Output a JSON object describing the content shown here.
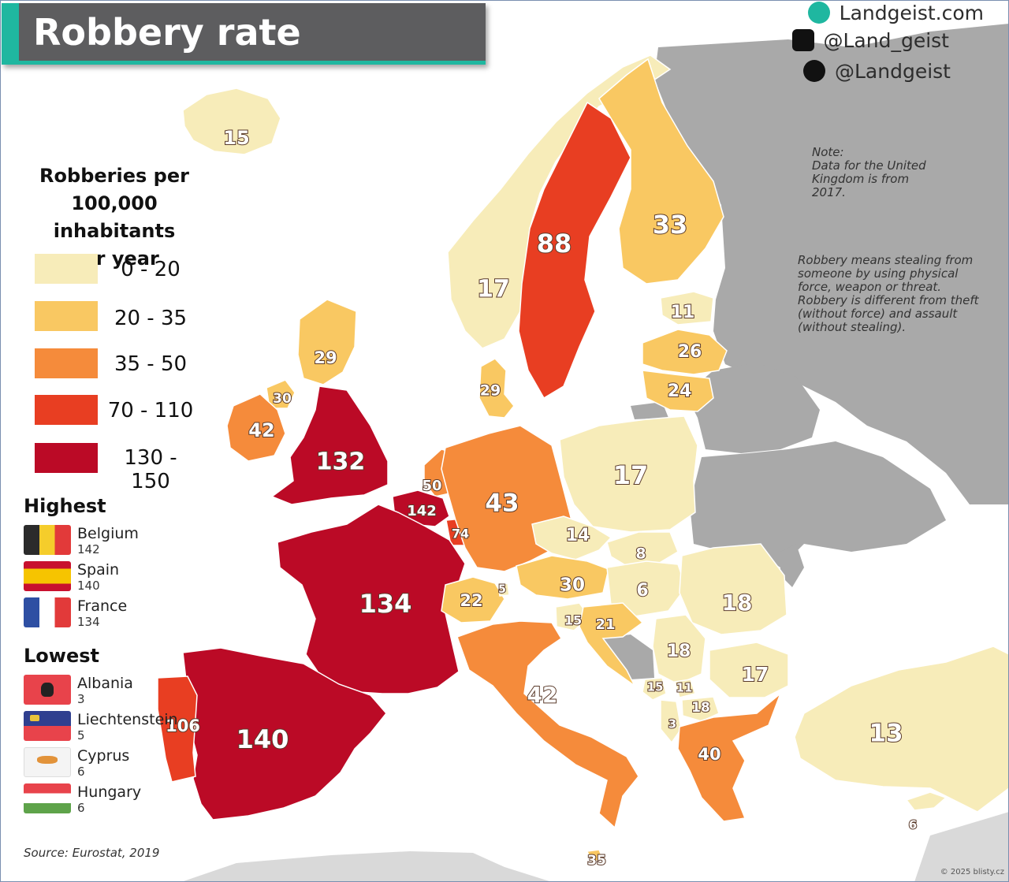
{
  "title": "Robbery rate",
  "brand": {
    "website": "Landgeist.com",
    "instagram": "@Land_geist",
    "twitter": "@Landgeist",
    "icons": [
      "globe-icon",
      "instagram-icon",
      "twitter-icon"
    ]
  },
  "legend": {
    "title_lines": [
      "Robberies per",
      "100,000 inhabitants",
      "per year"
    ],
    "bins": [
      {
        "label": "0  - 20",
        "color": "#f7ecb9"
      },
      {
        "label": "20 - 35",
        "color": "#f9c862"
      },
      {
        "label": "35 - 50",
        "color": "#f58b3b"
      },
      {
        "label": "70  - 110",
        "color": "#e83e22"
      },
      {
        "label": "130 - 150",
        "color": "#bb0a26"
      }
    ],
    "no_data_color": "#a9a9a9"
  },
  "highest": {
    "title": "Highest",
    "items": [
      {
        "country": "Belgium",
        "value": "142",
        "flag": "belgium-flag"
      },
      {
        "country": "Spain",
        "value": "140",
        "flag": "spain-flag"
      },
      {
        "country": "France",
        "value": "134",
        "flag": "france-flag"
      }
    ]
  },
  "lowest": {
    "title": "Lowest",
    "items": [
      {
        "country": "Albania",
        "value": "3",
        "flag": "albania-flag"
      },
      {
        "country": "Liechtenstein",
        "value": "5",
        "flag": "liechtenstein-flag"
      },
      {
        "country": "Cyprus",
        "value": "6",
        "flag": "cyprus-flag"
      },
      {
        "country": "Hungary",
        "value": "6",
        "flag": "hungary-flag"
      }
    ]
  },
  "notes": {
    "uk_lines": [
      "Note:",
      "Data for the United",
      "Kingdom is from 2017."
    ],
    "definition_lines": [
      "Robbery means stealing from",
      "someone by using physical",
      "force, weapon or threat.",
      "Robbery is different from theft",
      "(without force) and assault",
      "(without stealing)."
    ]
  },
  "source": "Source: Eurostat, 2019",
  "credit": "© 2025 blisty.cz",
  "countries": [
    {
      "name": "Iceland",
      "value": 15,
      "label": "15",
      "bin": 0
    },
    {
      "name": "Norway",
      "value": 17,
      "label": "17",
      "bin": 0
    },
    {
      "name": "Sweden",
      "value": 88,
      "label": "88",
      "bin": 3
    },
    {
      "name": "Finland",
      "value": 33,
      "label": "33",
      "bin": 1
    },
    {
      "name": "Estonia",
      "value": 11,
      "label": "11",
      "bin": 0
    },
    {
      "name": "Latvia",
      "value": 26,
      "label": "26",
      "bin": 1
    },
    {
      "name": "Lithuania",
      "value": 24,
      "label": "24",
      "bin": 1
    },
    {
      "name": "Denmark",
      "value": 29,
      "label": "29",
      "bin": 1
    },
    {
      "name": "Scotland",
      "value": 29,
      "label": "29",
      "bin": 1
    },
    {
      "name": "Northern Ireland",
      "value": 30,
      "label": "30",
      "bin": 1
    },
    {
      "name": "Ireland",
      "value": 42,
      "label": "42",
      "bin": 2
    },
    {
      "name": "England and Wales",
      "value": 132,
      "label": "132",
      "bin": 4
    },
    {
      "name": "Netherlands",
      "value": 50,
      "label": "50",
      "bin": 2
    },
    {
      "name": "Belgium",
      "value": 142,
      "label": "142",
      "bin": 4
    },
    {
      "name": "Luxembourg",
      "value": 74,
      "label": "74",
      "bin": 3
    },
    {
      "name": "Germany",
      "value": 43,
      "label": "43",
      "bin": 2
    },
    {
      "name": "Poland",
      "value": 17,
      "label": "17",
      "bin": 0
    },
    {
      "name": "Czechia",
      "value": 14,
      "label": "14",
      "bin": 0
    },
    {
      "name": "Slovakia",
      "value": 8,
      "label": "8",
      "bin": 0
    },
    {
      "name": "Austria",
      "value": 30,
      "label": "30",
      "bin": 1
    },
    {
      "name": "Hungary",
      "value": 6,
      "label": "6",
      "bin": 0
    },
    {
      "name": "Romania",
      "value": 18,
      "label": "18",
      "bin": 0
    },
    {
      "name": "France",
      "value": 134,
      "label": "134",
      "bin": 4
    },
    {
      "name": "Switzerland",
      "value": 22,
      "label": "22",
      "bin": 1
    },
    {
      "name": "Liechtenstein",
      "value": 5,
      "label": "5",
      "bin": 0
    },
    {
      "name": "Slovenia",
      "value": 15,
      "label": "15",
      "bin": 0
    },
    {
      "name": "Croatia",
      "value": 21,
      "label": "21",
      "bin": 1
    },
    {
      "name": "Serbia",
      "value": 18,
      "label": "18",
      "bin": 0
    },
    {
      "name": "Bulgaria",
      "value": 17,
      "label": "17",
      "bin": 0
    },
    {
      "name": "Montenegro",
      "value": 15,
      "label": "15",
      "bin": 0
    },
    {
      "name": "Kosovo",
      "value": 11,
      "label": "11",
      "bin": 0
    },
    {
      "name": "North Macedonia",
      "value": 18,
      "label": "18",
      "bin": 0
    },
    {
      "name": "Albania",
      "value": 3,
      "label": "3",
      "bin": 0
    },
    {
      "name": "Greece",
      "value": 40,
      "label": "40",
      "bin": 2
    },
    {
      "name": "Italy",
      "value": 42,
      "label": "42",
      "bin": 2
    },
    {
      "name": "Spain",
      "value": 140,
      "label": "140",
      "bin": 4
    },
    {
      "name": "Portugal",
      "value": 106,
      "label": "106",
      "bin": 3
    },
    {
      "name": "Turkey",
      "value": 13,
      "label": "13",
      "bin": 0
    },
    {
      "name": "Cyprus",
      "value": 6,
      "label": "6",
      "bin": 0
    },
    {
      "name": "Malta",
      "value": 35,
      "label": "35",
      "bin": 1
    }
  ]
}
